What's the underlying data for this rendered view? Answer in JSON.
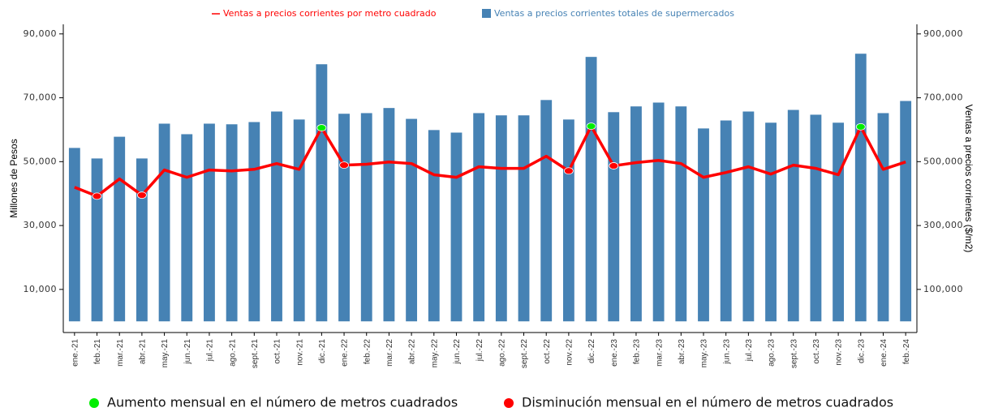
{
  "chart_data": {
    "type": "bar-line",
    "categories": [
      "ene.-21",
      "feb.-21",
      "mar.-21",
      "abr.-21",
      "may.-21",
      "jun.-21",
      "jul.-21",
      "ago.-21",
      "sept.-21",
      "oct.-21",
      "nov.-21",
      "dic.-21",
      "ene.-22",
      "feb.-22",
      "mar.-22",
      "abr.-22",
      "may.-22",
      "jun.-22",
      "jul.-22",
      "ago.-22",
      "sept.-22",
      "oct.-22",
      "nov.-22",
      "dic.-22",
      "ene.-23",
      "feb.-23",
      "mar.-23",
      "abr.-23",
      "may.-23",
      "jun.-23",
      "jul.-23",
      "ago.-23",
      "sept.-23",
      "oct.-23",
      "nov.-23",
      "dic.-23",
      "ene.-24",
      "feb.-24"
    ],
    "series": [
      {
        "name": "Ventas a precios corrientes totales de supermercados",
        "type": "bar",
        "color": "#4682b4",
        "values": [
          54300,
          51000,
          57800,
          51000,
          61900,
          58600,
          61900,
          61700,
          62400,
          65700,
          63200,
          80500,
          65000,
          65200,
          66800,
          63400,
          59900,
          59100,
          65200,
          64500,
          64500,
          69300,
          63200,
          82800,
          65500,
          67300,
          68500,
          67300,
          60400,
          62900,
          65700,
          62200,
          66200,
          64700,
          62200,
          83800,
          65200,
          69000
        ]
      },
      {
        "name": "Ventas a precios corrientes por metro cuadrado",
        "type": "line",
        "axis": "y2",
        "color": "#ff0000",
        "values": [
          420000,
          392000,
          446000,
          395000,
          474000,
          451000,
          474000,
          471000,
          476000,
          494000,
          476000,
          606000,
          489000,
          492000,
          499000,
          494000,
          459000,
          451000,
          484000,
          479000,
          479000,
          517000,
          471000,
          611000,
          487000,
          497000,
          504000,
          494000,
          451000,
          466000,
          484000,
          461000,
          489000,
          479000,
          459000,
          609000,
          476000,
          499000
        ],
        "marker_colors": [
          null,
          "#ff0000",
          null,
          "#ff0000",
          null,
          null,
          null,
          null,
          null,
          null,
          null,
          "#00ee00",
          "#ff0000",
          null,
          null,
          null,
          null,
          null,
          null,
          null,
          null,
          null,
          "#ff0000",
          "#00ee00",
          "#ff0000",
          null,
          null,
          null,
          null,
          null,
          null,
          null,
          null,
          null,
          null,
          "#00ee00",
          null,
          null
        ]
      }
    ],
    "marker_legend": [
      {
        "name": "Aumento mensual en el número de metros cuadrados",
        "color": "#00ee00"
      },
      {
        "name": "Disminución mensual en el número de metros cuadrados",
        "color": "#ff0000"
      }
    ],
    "ylabel": "Millones de Pesos",
    "y2label": "Ventas a precios corrientes ($/m2)",
    "ylim": [
      -3500,
      93000
    ],
    "yticks": [
      {
        "value": 10000,
        "label": "10,000"
      },
      {
        "value": 30000,
        "label": "30,000"
      },
      {
        "value": 50000,
        "label": "50,000"
      },
      {
        "value": 70000,
        "label": "70,000"
      },
      {
        "value": 90000,
        "label": "90,000"
      }
    ],
    "y2lim": [
      -35000,
      930000
    ],
    "y2ticks": [
      {
        "value": 100000,
        "label": "100,000"
      },
      {
        "value": 300000,
        "label": "300,000"
      },
      {
        "value": 500000,
        "label": "500,000"
      },
      {
        "value": 700000,
        "label": "700,000"
      },
      {
        "value": 900000,
        "label": "900,000"
      }
    ]
  }
}
